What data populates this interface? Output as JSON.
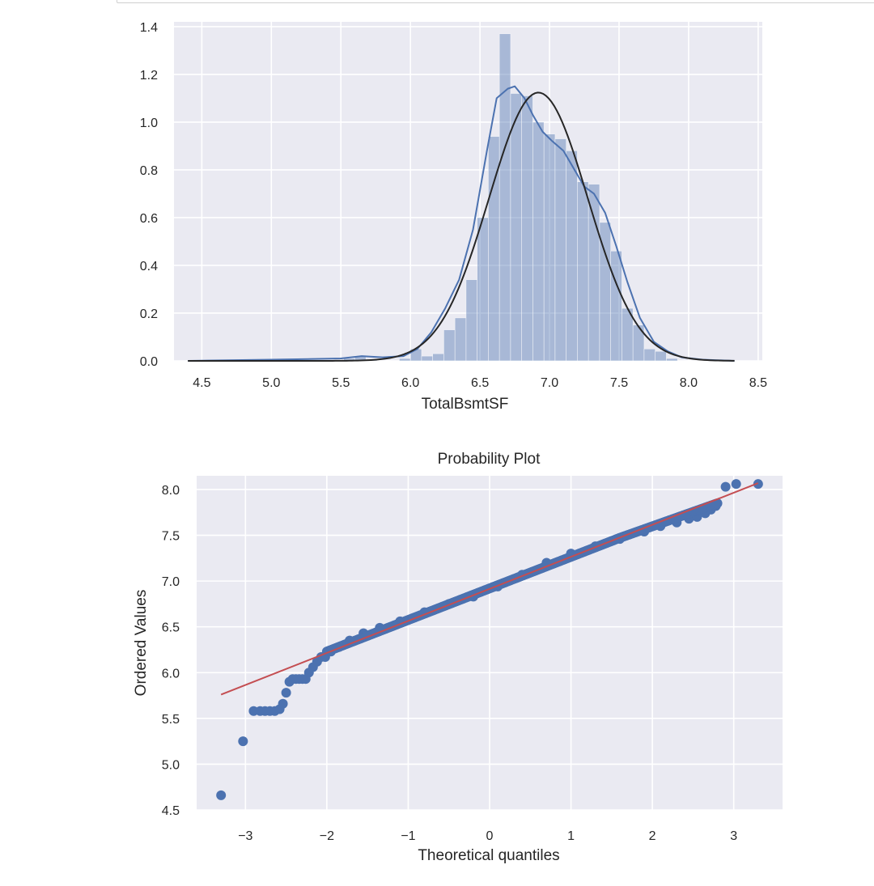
{
  "chart_data": [
    {
      "type": "histogram",
      "xlabel": "TotalBsmtSF",
      "ylabel": "",
      "title": "",
      "xlim": [
        4.3,
        8.53
      ],
      "ylim": [
        0,
        1.42
      ],
      "xticks": [
        "4.5",
        "5.0",
        "5.5",
        "6.0",
        "6.5",
        "7.0",
        "7.5",
        "8.0",
        "8.5"
      ],
      "yticks": [
        "0.0",
        "0.2",
        "0.4",
        "0.6",
        "0.8",
        "1.0",
        "1.2",
        "1.4"
      ],
      "grid": true,
      "colors": {
        "background": "#eaeaf2",
        "bars": "#4c72b0",
        "kde": "#4c72b0",
        "normal_fit": "#262626"
      },
      "histogram": {
        "bin_edges": [
          5.52,
          5.6,
          5.68,
          5.76,
          5.84,
          5.92,
          6.0,
          6.08,
          6.16,
          6.24,
          6.32,
          6.4,
          6.48,
          6.56,
          6.64,
          6.72,
          6.8,
          6.88,
          6.96,
          7.04,
          7.12,
          7.2,
          7.28,
          7.36,
          7.44,
          7.52,
          7.6,
          7.68,
          7.76,
          7.84,
          7.92
        ],
        "densities": [
          0.01,
          0.02,
          0.005,
          0,
          0,
          0.01,
          0.05,
          0.02,
          0.03,
          0.13,
          0.18,
          0.34,
          0.6,
          0.94,
          1.37,
          1.12,
          1.11,
          1.0,
          0.95,
          0.93,
          0.88,
          0.75,
          0.74,
          0.58,
          0.46,
          0.22,
          0.15,
          0.05,
          0.04,
          0.01
        ]
      },
      "kde": {
        "x": [
          4.4,
          5.0,
          5.5,
          5.65,
          5.8,
          5.95,
          6.05,
          6.15,
          6.25,
          6.35,
          6.45,
          6.55,
          6.62,
          6.7,
          6.75,
          6.82,
          6.88,
          6.95,
          7.02,
          7.1,
          7.18,
          7.25,
          7.32,
          7.4,
          7.48,
          7.56,
          7.65,
          7.75,
          7.85,
          7.95,
          8.1,
          8.33
        ],
        "y": [
          0.0,
          0.005,
          0.01,
          0.02,
          0.015,
          0.02,
          0.05,
          0.12,
          0.22,
          0.34,
          0.55,
          0.88,
          1.1,
          1.14,
          1.15,
          1.1,
          1.03,
          0.96,
          0.92,
          0.88,
          0.8,
          0.73,
          0.7,
          0.62,
          0.48,
          0.33,
          0.18,
          0.08,
          0.04,
          0.015,
          0.005,
          0.0
        ]
      },
      "normal_fit": {
        "mean": 6.92,
        "sd": 0.355,
        "x_range": [
          4.4,
          8.33
        ]
      }
    },
    {
      "type": "scatter",
      "title": "Probability Plot",
      "xlabel": "Theoretical quantiles",
      "ylabel": "Ordered Values",
      "xlim": [
        -3.6,
        3.6
      ],
      "ylim": [
        4.5,
        8.15
      ],
      "xticks": [
        "−3",
        "−2",
        "−1",
        "0",
        "1",
        "2",
        "3"
      ],
      "yticks": [
        "4.5",
        "5.0",
        "5.5",
        "6.0",
        "6.5",
        "7.0",
        "7.5",
        "8.0"
      ],
      "grid": true,
      "colors": {
        "background": "#eaeaf2",
        "points": "#4c72b0",
        "fit_line": "#c44e52"
      },
      "points": {
        "x": [
          -3.3,
          -3.03,
          -2.9,
          -2.82,
          -2.76,
          -2.7,
          -2.64,
          -2.58,
          -2.54,
          -2.5,
          -2.46,
          -2.42,
          -2.38,
          -2.34,
          -2.3,
          -2.26,
          -2.22,
          -2.17,
          -2.12,
          -2.07,
          -2.02,
          -1.95,
          -1.85,
          -1.72,
          -1.55,
          -1.35,
          -1.1,
          -0.8,
          -0.5,
          -0.2,
          0.1,
          0.4,
          0.7,
          1.0,
          1.3,
          1.6,
          1.9,
          2.1,
          2.3,
          2.45,
          2.55,
          2.65,
          2.72,
          2.78,
          2.9,
          3.03,
          3.3
        ],
        "y": [
          4.66,
          5.25,
          5.58,
          5.58,
          5.58,
          5.58,
          5.58,
          5.6,
          5.66,
          5.78,
          5.9,
          5.93,
          5.93,
          5.93,
          5.93,
          5.93,
          6.0,
          6.06,
          6.12,
          6.17,
          6.17,
          6.23,
          6.28,
          6.35,
          6.43,
          6.49,
          6.56,
          6.66,
          6.75,
          6.83,
          6.94,
          7.07,
          7.2,
          7.3,
          7.38,
          7.46,
          7.54,
          7.6,
          7.64,
          7.68,
          7.7,
          7.74,
          7.78,
          7.82,
          8.03,
          8.06,
          8.06
        ]
      },
      "fit_line": {
        "x": [
          -3.3,
          3.3
        ],
        "y": [
          5.76,
          8.07
        ]
      }
    }
  ]
}
